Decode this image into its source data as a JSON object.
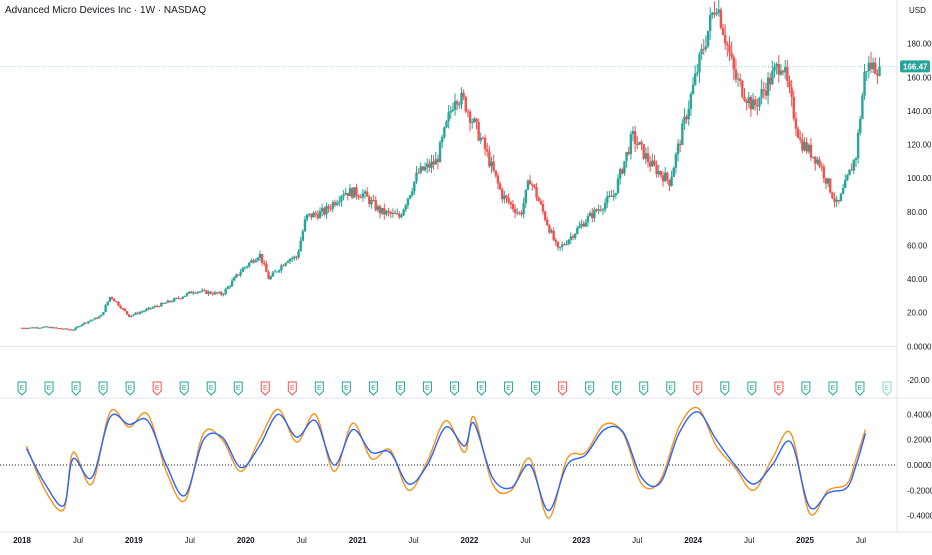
{
  "header": {
    "title": "Advanced Micro Devices Inc · 1W · NASDAQ",
    "currency": "USD"
  },
  "colors": {
    "up": "#26a69a",
    "down": "#ef5350",
    "osc_fast": "#f7931a",
    "osc_slow": "#2962ff",
    "grid": "#e0e3eb",
    "text": "#131722"
  },
  "chart_data": [
    {
      "type": "candlestick",
      "title": "Advanced Micro Devices Inc · 1W · NASDAQ",
      "ylabel": "USD",
      "ylim": [
        -20,
        200
      ],
      "y_ticks": [
        "180.00",
        "160.00",
        "140.00",
        "120.00",
        "100.00",
        "80.00",
        "60.00",
        "40.00",
        "20.00",
        "0.0000",
        "-20.00"
      ],
      "x_ticks": [
        "2018",
        "Jul",
        "2019",
        "Jul",
        "2020",
        "Jul",
        "2021",
        "Jul",
        "2022",
        "Jul",
        "2023",
        "Jul",
        "2024",
        "Jul",
        "2025",
        "Jul"
      ],
      "last_price": "166.47",
      "close_path": [
        [
          "2018-01",
          11.0
        ],
        [
          "2018-03",
          11.5
        ],
        [
          "2018-06",
          9.8
        ],
        [
          "2018-07",
          13.5
        ],
        [
          "2018-09",
          18.0
        ],
        [
          "2018-10",
          30.0
        ],
        [
          "2018-12",
          18.0
        ],
        [
          "2019-02",
          22.0
        ],
        [
          "2019-05",
          28.0
        ],
        [
          "2019-07",
          33.0
        ],
        [
          "2019-10",
          31.0
        ],
        [
          "2019-12",
          45.0
        ],
        [
          "2020-02",
          55.0
        ],
        [
          "2020-03",
          40.0
        ],
        [
          "2020-05",
          52.0
        ],
        [
          "2020-06",
          53.0
        ],
        [
          "2020-07",
          77.0
        ],
        [
          "2020-09",
          80.0
        ],
        [
          "2020-11",
          92.0
        ],
        [
          "2021-01",
          91.0
        ],
        [
          "2021-03",
          80.0
        ],
        [
          "2021-05",
          77.0
        ],
        [
          "2021-07",
          103.0
        ],
        [
          "2021-09",
          110.0
        ],
        [
          "2021-11",
          150.0
        ],
        [
          "2021-12",
          145.0
        ],
        [
          "2022-02",
          120.0
        ],
        [
          "2022-04",
          90.0
        ],
        [
          "2022-06",
          78.0
        ],
        [
          "2022-07",
          100.0
        ],
        [
          "2022-10",
          57.0
        ],
        [
          "2023-01",
          75.0
        ],
        [
          "2023-04",
          90.0
        ],
        [
          "2023-06",
          125.0
        ],
        [
          "2023-08",
          108.0
        ],
        [
          "2023-10",
          98.0
        ],
        [
          "2024-01",
          165.0
        ],
        [
          "2024-03",
          206.0
        ],
        [
          "2024-05",
          160.0
        ],
        [
          "2024-07",
          142.0
        ],
        [
          "2024-10",
          170.0
        ],
        [
          "2024-12",
          122.0
        ],
        [
          "2025-02",
          110.0
        ],
        [
          "2025-04",
          83.0
        ],
        [
          "2025-06",
          114.0
        ],
        [
          "2025-07",
          166.47
        ]
      ],
      "event_markers": [
        "E",
        "E",
        "E",
        "E",
        "E",
        "E",
        "E",
        "E",
        "E",
        "E",
        "E",
        "E",
        "E",
        "E",
        "E",
        "E",
        "E",
        "E",
        "E",
        "E",
        "E",
        "E",
        "E",
        "E",
        "E",
        "E",
        "E",
        "E",
        "E",
        "E",
        "E",
        "E",
        "E"
      ]
    },
    {
      "type": "line",
      "ylim": [
        -0.45,
        0.45
      ],
      "y_ticks": [
        "0.4000",
        "0.2000",
        "0.0000",
        "-0.2000",
        "-0.4000"
      ],
      "zero_line": true,
      "series": [
        {
          "color": "#f7931a",
          "points": [
            [
              "2018-01",
              0.15
            ],
            [
              "2018-03",
              -0.2
            ],
            [
              "2018-05",
              -0.35
            ],
            [
              "2018-06",
              0.1
            ],
            [
              "2018-08",
              -0.15
            ],
            [
              "2018-10",
              0.42
            ],
            [
              "2018-12",
              0.3
            ],
            [
              "2019-02",
              0.4
            ],
            [
              "2019-04",
              -0.05
            ],
            [
              "2019-06",
              -0.28
            ],
            [
              "2019-08",
              0.25
            ],
            [
              "2019-10",
              0.2
            ],
            [
              "2019-12",
              -0.05
            ],
            [
              "2020-02",
              0.2
            ],
            [
              "2020-04",
              0.44
            ],
            [
              "2020-06",
              0.18
            ],
            [
              "2020-08",
              0.4
            ],
            [
              "2020-10",
              -0.05
            ],
            [
              "2020-12",
              0.33
            ],
            [
              "2021-02",
              0.05
            ],
            [
              "2021-04",
              0.12
            ],
            [
              "2021-06",
              -0.2
            ],
            [
              "2021-08",
              0.03
            ],
            [
              "2021-10",
              0.35
            ],
            [
              "2021-12",
              0.1
            ],
            [
              "2022-01",
              0.38
            ],
            [
              "2022-03",
              -0.15
            ],
            [
              "2022-05",
              -0.2
            ],
            [
              "2022-07",
              0.05
            ],
            [
              "2022-09",
              -0.42
            ],
            [
              "2022-11",
              0.05
            ],
            [
              "2023-01",
              0.1
            ],
            [
              "2023-03",
              0.32
            ],
            [
              "2023-05",
              0.25
            ],
            [
              "2023-07",
              -0.15
            ],
            [
              "2023-09",
              -0.12
            ],
            [
              "2023-11",
              0.3
            ],
            [
              "2024-01",
              0.45
            ],
            [
              "2024-03",
              0.15
            ],
            [
              "2024-05",
              -0.02
            ],
            [
              "2024-07",
              -0.2
            ],
            [
              "2024-09",
              0.05
            ],
            [
              "2024-11",
              0.25
            ],
            [
              "2025-01",
              -0.38
            ],
            [
              "2025-03",
              -0.2
            ],
            [
              "2025-05",
              -0.15
            ],
            [
              "2025-06",
              0.05
            ],
            [
              "2025-07",
              0.28
            ]
          ]
        },
        {
          "color": "#2962ff",
          "points": [
            [
              "2018-01",
              0.13
            ],
            [
              "2018-03",
              -0.15
            ],
            [
              "2018-05",
              -0.32
            ],
            [
              "2018-06",
              0.05
            ],
            [
              "2018-08",
              -0.1
            ],
            [
              "2018-10",
              0.38
            ],
            [
              "2018-12",
              0.32
            ],
            [
              "2019-02",
              0.35
            ],
            [
              "2019-04",
              0.0
            ],
            [
              "2019-06",
              -0.24
            ],
            [
              "2019-08",
              0.2
            ],
            [
              "2019-10",
              0.22
            ],
            [
              "2019-12",
              -0.02
            ],
            [
              "2020-02",
              0.15
            ],
            [
              "2020-04",
              0.4
            ],
            [
              "2020-06",
              0.22
            ],
            [
              "2020-08",
              0.35
            ],
            [
              "2020-10",
              0.0
            ],
            [
              "2020-12",
              0.28
            ],
            [
              "2021-02",
              0.1
            ],
            [
              "2021-04",
              0.1
            ],
            [
              "2021-06",
              -0.15
            ],
            [
              "2021-08",
              0.0
            ],
            [
              "2021-10",
              0.3
            ],
            [
              "2021-12",
              0.15
            ],
            [
              "2022-01",
              0.33
            ],
            [
              "2022-03",
              -0.1
            ],
            [
              "2022-05",
              -0.18
            ],
            [
              "2022-07",
              0.0
            ],
            [
              "2022-09",
              -0.36
            ],
            [
              "2022-11",
              0.0
            ],
            [
              "2023-01",
              0.08
            ],
            [
              "2023-03",
              0.28
            ],
            [
              "2023-05",
              0.26
            ],
            [
              "2023-07",
              -0.1
            ],
            [
              "2023-09",
              -0.14
            ],
            [
              "2023-11",
              0.25
            ],
            [
              "2024-01",
              0.42
            ],
            [
              "2024-03",
              0.2
            ],
            [
              "2024-05",
              0.0
            ],
            [
              "2024-07",
              -0.15
            ],
            [
              "2024-09",
              0.0
            ],
            [
              "2024-11",
              0.18
            ],
            [
              "2025-01",
              -0.33
            ],
            [
              "2025-03",
              -0.22
            ],
            [
              "2025-05",
              -0.18
            ],
            [
              "2025-06",
              0.0
            ],
            [
              "2025-07",
              0.25
            ]
          ]
        }
      ]
    }
  ]
}
